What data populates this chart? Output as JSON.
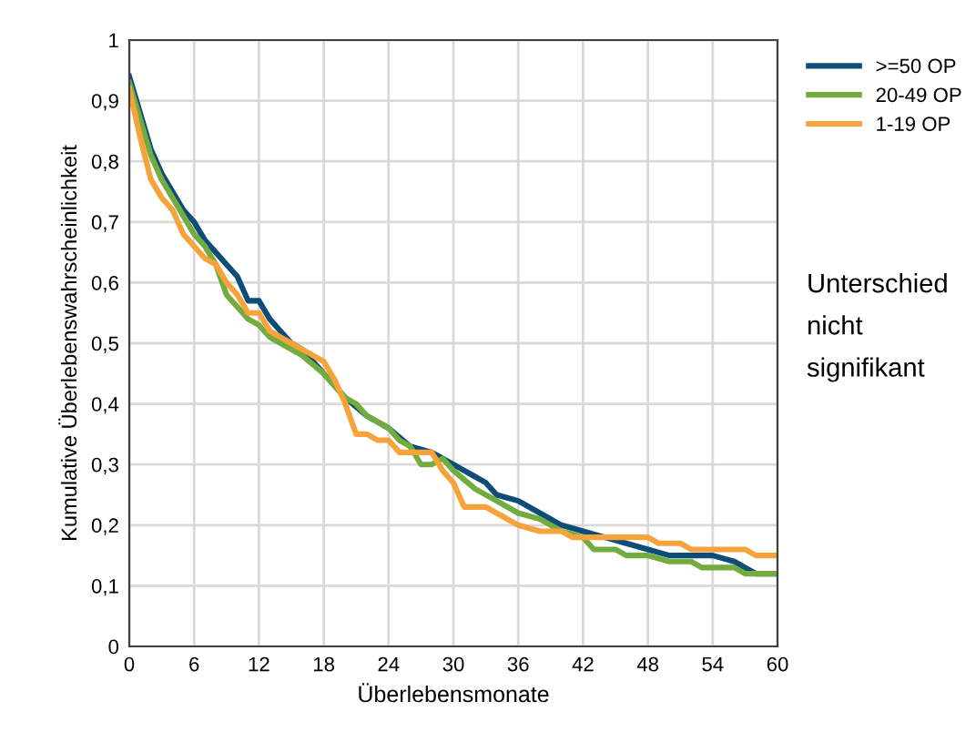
{
  "chart_data": {
    "type": "line",
    "xlabel": "Überlebensmonate",
    "ylabel": "Kumulative Überlebenswahrscheinlichkeit",
    "annotations": [
      "Unterschied\nnicht\nsignifikant"
    ],
    "xlim": [
      0,
      60
    ],
    "xticks": [
      0,
      6,
      12,
      18,
      24,
      30,
      36,
      42,
      48,
      54,
      60
    ],
    "ylim": [
      0,
      1
    ],
    "yticks": [
      0,
      {
        "value": 0.1,
        "label": "0,1"
      },
      {
        "value": 0.2,
        "label": "0,2"
      },
      {
        "value": 0.3,
        "label": "0,3"
      },
      {
        "value": 0.4,
        "label": "0,4"
      },
      {
        "value": 0.5,
        "label": "0,5"
      },
      {
        "value": 0.6,
        "label": "0,6"
      },
      {
        "value": 0.7,
        "label": "0,7"
      },
      {
        "value": 0.8,
        "label": "0,8"
      },
      {
        "value": 0.9,
        "label": "0,9"
      },
      1
    ],
    "grid": true,
    "legend": "right",
    "marker": "none",
    "line_style": "solid",
    "series": [
      {
        "name": ">=50 OP",
        "color": "#0e4d78",
        "x": [
          0,
          1,
          2,
          3,
          4,
          5,
          6,
          7,
          8,
          9,
          10,
          11,
          12,
          13,
          14,
          15,
          16,
          17,
          18,
          19,
          20,
          22,
          24,
          26,
          28,
          30,
          32,
          33,
          34,
          36,
          38,
          40,
          42,
          44,
          46,
          48,
          50,
          52,
          54,
          56,
          58,
          60
        ],
        "values": [
          0.94,
          0.88,
          0.82,
          0.78,
          0.75,
          0.72,
          0.7,
          0.67,
          0.65,
          0.63,
          0.61,
          0.57,
          0.57,
          0.54,
          0.52,
          0.5,
          0.49,
          0.47,
          0.45,
          0.43,
          0.41,
          0.38,
          0.36,
          0.33,
          0.32,
          0.3,
          0.28,
          0.27,
          0.25,
          0.24,
          0.22,
          0.2,
          0.19,
          0.18,
          0.17,
          0.16,
          0.15,
          0.15,
          0.15,
          0.14,
          0.12,
          0.12
        ]
      },
      {
        "name": "20-49 OP",
        "color": "#72ac3f",
        "x": [
          0,
          1,
          2,
          3,
          4,
          5,
          6,
          7,
          8,
          9,
          10,
          11,
          12,
          13,
          14,
          16,
          18,
          20,
          21,
          22,
          24,
          25,
          26,
          27,
          28,
          29,
          30,
          32,
          34,
          36,
          38,
          40,
          42,
          43,
          45,
          46,
          48,
          50,
          52,
          53,
          56,
          57,
          60
        ],
        "values": [
          0.93,
          0.87,
          0.81,
          0.77,
          0.74,
          0.71,
          0.68,
          0.66,
          0.63,
          0.58,
          0.56,
          0.54,
          0.53,
          0.51,
          0.5,
          0.48,
          0.45,
          0.41,
          0.4,
          0.38,
          0.36,
          0.34,
          0.33,
          0.3,
          0.3,
          0.31,
          0.29,
          0.26,
          0.24,
          0.22,
          0.21,
          0.19,
          0.18,
          0.16,
          0.16,
          0.15,
          0.15,
          0.14,
          0.14,
          0.13,
          0.13,
          0.12,
          0.12
        ]
      },
      {
        "name": "1-19 OP",
        "color": "#f5a33a",
        "x": [
          0,
          1,
          2,
          3,
          4,
          5,
          6,
          7,
          8,
          9,
          10,
          11,
          12,
          13,
          14,
          15,
          16,
          17,
          18,
          19,
          20,
          21,
          22,
          23,
          24,
          25,
          26,
          27,
          28,
          29,
          30,
          31,
          32,
          33,
          34,
          36,
          38,
          40,
          41,
          42,
          48,
          49,
          51,
          52,
          57,
          58,
          60
        ],
        "values": [
          0.92,
          0.84,
          0.77,
          0.74,
          0.72,
          0.68,
          0.66,
          0.64,
          0.63,
          0.6,
          0.58,
          0.55,
          0.55,
          0.52,
          0.51,
          0.5,
          0.49,
          0.48,
          0.47,
          0.44,
          0.4,
          0.35,
          0.35,
          0.34,
          0.34,
          0.32,
          0.32,
          0.32,
          0.32,
          0.29,
          0.27,
          0.23,
          0.23,
          0.23,
          0.22,
          0.2,
          0.19,
          0.19,
          0.18,
          0.18,
          0.18,
          0.17,
          0.17,
          0.16,
          0.16,
          0.15,
          0.15
        ]
      }
    ]
  }
}
